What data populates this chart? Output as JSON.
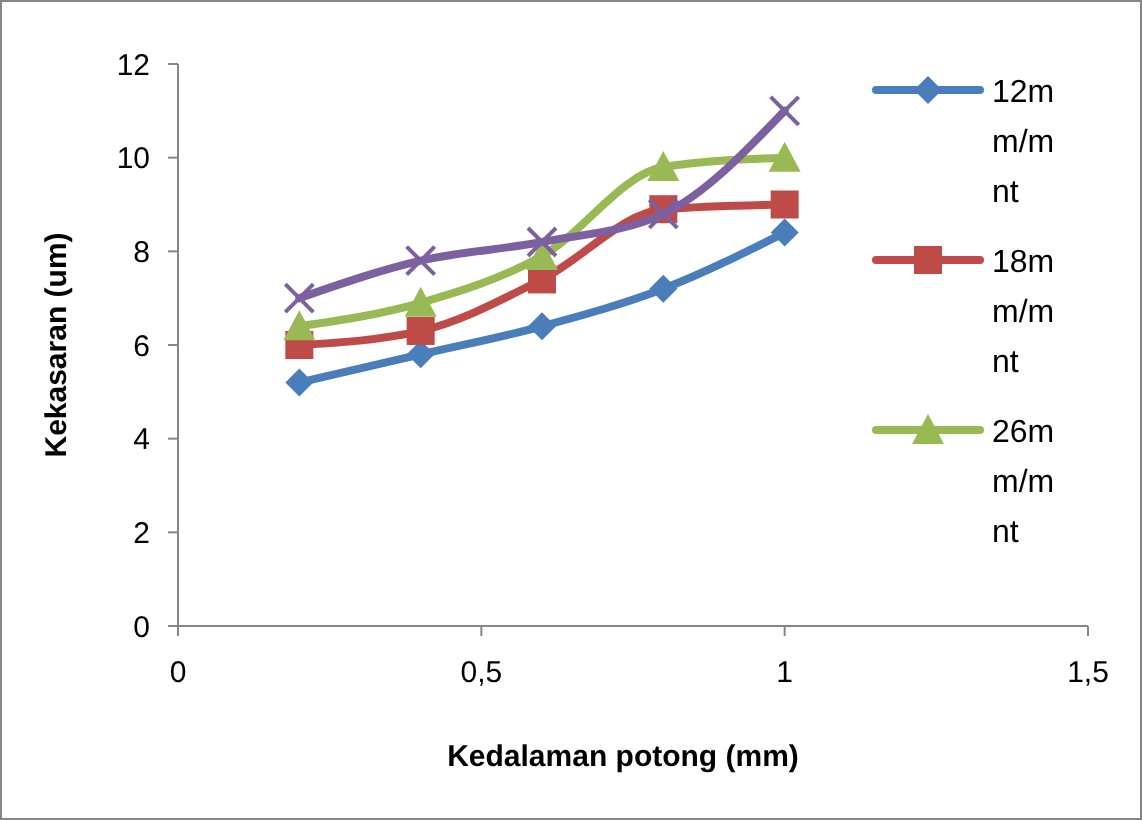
{
  "chart_data": {
    "type": "line",
    "xlabel": "Kedalaman potong (mm)",
    "ylabel": "Kekasaran (um)",
    "x": [
      0.2,
      0.4,
      0.6,
      0.8,
      1
    ],
    "xlim": [
      0,
      1.5
    ],
    "xticks": [
      0,
      {
        "value": 0.5,
        "label": "0,5"
      },
      1,
      {
        "value": 1.5,
        "label": "1,5"
      }
    ],
    "ylim": [
      0,
      12
    ],
    "yticks": [
      0,
      2,
      4,
      6,
      8,
      10,
      12
    ],
    "grid": false,
    "legend": "right",
    "series": [
      {
        "name": "12mm/mnt",
        "color": "#4a7ebb",
        "marker": "diamond",
        "values": [
          5.2,
          5.8,
          6.4,
          7.2,
          8.4
        ]
      },
      {
        "name": "18mm/mnt",
        "color": "#be4b48",
        "marker": "square",
        "values": [
          6.0,
          6.3,
          7.4,
          8.9,
          9.0
        ]
      },
      {
        "name": "26mm/mnt",
        "color": "#98b954",
        "marker": "triangle",
        "values": [
          6.4,
          6.9,
          7.9,
          9.8,
          10.0
        ]
      },
      {
        "color": "#7d60a0",
        "marker": "cross",
        "values": [
          7.0,
          7.8,
          8.2,
          8.8,
          11.0
        ]
      }
    ]
  }
}
